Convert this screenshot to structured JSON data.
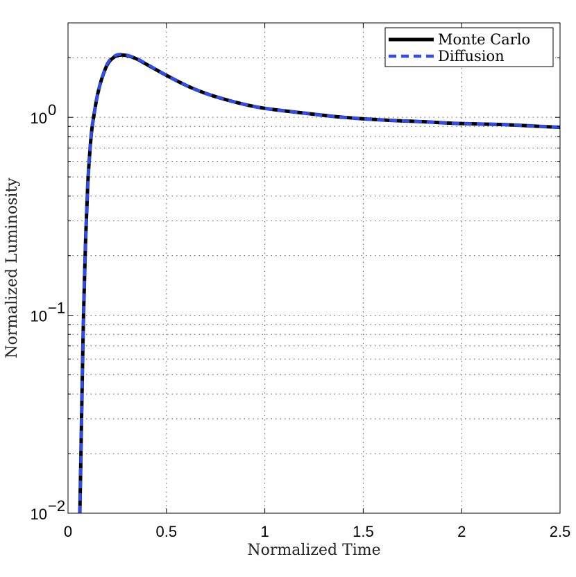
{
  "chart_data": {
    "type": "line",
    "title": "",
    "xlabel": "Normalized Time",
    "ylabel": "Normalized Luminosity",
    "xlim": [
      0,
      2.5
    ],
    "ylim": [
      0.01,
      3
    ],
    "yscale": "log",
    "grid": true,
    "legend_position": "top-right",
    "x_ticks": [
      {
        "value": 0,
        "label": "0"
      },
      {
        "value": 0.5,
        "label": "0.5"
      },
      {
        "value": 1,
        "label": "1"
      },
      {
        "value": 1.5,
        "label": "1.5"
      },
      {
        "value": 2,
        "label": "2"
      },
      {
        "value": 2.5,
        "label": "2.5"
      }
    ],
    "y_ticks": [
      {
        "value": 0.01,
        "base": "10",
        "exp": "−2"
      },
      {
        "value": 0.1,
        "base": "10",
        "exp": "−1"
      },
      {
        "value": 1,
        "base": "10",
        "exp": "0"
      }
    ],
    "series": [
      {
        "name": "Monte Carlo",
        "color": "#000000",
        "style": "solid",
        "x": [
          0.06,
          0.065,
          0.07,
          0.075,
          0.08,
          0.09,
          0.1,
          0.11,
          0.12,
          0.13,
          0.14,
          0.15,
          0.17,
          0.2,
          0.23,
          0.26,
          0.3,
          0.35,
          0.4,
          0.5,
          0.6,
          0.7,
          0.8,
          0.9,
          1.0,
          1.2,
          1.4,
          1.6,
          1.8,
          2.0,
          2.2,
          2.4,
          2.5
        ],
        "y": [
          0.01,
          0.018,
          0.035,
          0.065,
          0.11,
          0.25,
          0.45,
          0.65,
          0.85,
          1.0,
          1.15,
          1.3,
          1.55,
          1.85,
          2.0,
          2.06,
          2.05,
          1.97,
          1.85,
          1.63,
          1.45,
          1.32,
          1.23,
          1.16,
          1.11,
          1.05,
          1.0,
          0.97,
          0.95,
          0.93,
          0.92,
          0.9,
          0.89
        ]
      },
      {
        "name": "Diffusion",
        "color": "#2f4cf0",
        "style": "dashed",
        "x": [
          0.06,
          0.065,
          0.07,
          0.075,
          0.08,
          0.09,
          0.1,
          0.11,
          0.12,
          0.13,
          0.14,
          0.15,
          0.17,
          0.2,
          0.23,
          0.26,
          0.3,
          0.35,
          0.4,
          0.5,
          0.6,
          0.7,
          0.8,
          0.9,
          1.0,
          1.2,
          1.4,
          1.6,
          1.8,
          2.0,
          2.2,
          2.4,
          2.5
        ],
        "y": [
          0.01,
          0.018,
          0.035,
          0.065,
          0.11,
          0.25,
          0.45,
          0.65,
          0.85,
          1.0,
          1.15,
          1.3,
          1.55,
          1.87,
          2.02,
          2.08,
          2.06,
          1.98,
          1.86,
          1.63,
          1.45,
          1.32,
          1.23,
          1.16,
          1.11,
          1.05,
          1.0,
          0.97,
          0.95,
          0.93,
          0.92,
          0.9,
          0.89
        ]
      }
    ]
  }
}
